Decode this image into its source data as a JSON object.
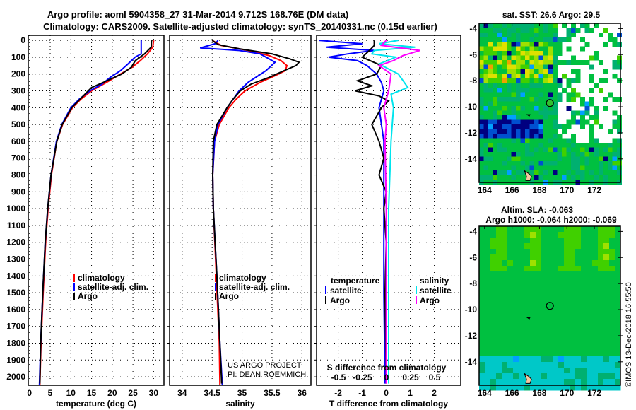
{
  "title_line1": "Argo profile: aoml 5904358_27 31-Mar-2014 9.712S 168.76E (DM data)",
  "title_line2": "Climatology: CARS2009. Satellite-adjusted climatology: synTS_20140331.nc (0.15d earlier)",
  "colors": {
    "climatology": "#ff0000",
    "satellite": "#0000ff",
    "argo": "#000000",
    "sal_satellite": "#00e5ee",
    "sal_argo": "#ff00ff"
  },
  "depth_ticks": [
    0,
    100,
    200,
    300,
    400,
    500,
    600,
    700,
    800,
    900,
    1000,
    1100,
    1200,
    1300,
    1400,
    1500,
    1600,
    1700,
    1800,
    1900,
    2000
  ],
  "chart_data": [
    {
      "type": "line",
      "xlabel": "temperature (deg C)",
      "ylabel": "depth",
      "xlim": [
        -0.3,
        32.5
      ],
      "ylim": [
        2050,
        -30
      ],
      "xticks": [
        0,
        5,
        10,
        15,
        20,
        25,
        30
      ],
      "legend": [
        "climatology",
        "satellite-adj. clim.",
        "Argo"
      ],
      "series": [
        {
          "name": "climatology",
          "points": [
            [
              0,
              30
            ],
            [
              40,
              29.8
            ],
            [
              80,
              28.5
            ],
            [
              120,
              26.8
            ],
            [
              160,
              24.8
            ],
            [
              200,
              22
            ],
            [
              250,
              18.6
            ],
            [
              300,
              15
            ],
            [
              350,
              12.4
            ],
            [
              400,
              10.4
            ],
            [
              500,
              8
            ],
            [
              600,
              6.6
            ],
            [
              800,
              5.3
            ],
            [
              1000,
              4.5
            ],
            [
              1200,
              3.9
            ],
            [
              1500,
              3.3
            ],
            [
              1800,
              2.8
            ],
            [
              2050,
              2.5
            ]
          ]
        },
        {
          "name": "satellite-adj. clim.",
          "points": [
            [
              0,
              27
            ],
            [
              80,
              27
            ],
            [
              100,
              25.5
            ],
            [
              140,
              23.8
            ],
            [
              180,
              22
            ],
            [
              220,
              19.5
            ],
            [
              260,
              17.5
            ],
            [
              300,
              14.6
            ],
            [
              350,
              12
            ],
            [
              400,
              10
            ],
            [
              500,
              7.8
            ],
            [
              600,
              6.5
            ],
            [
              800,
              5.2
            ],
            [
              1000,
              4.4
            ],
            [
              1200,
              3.8
            ],
            [
              1500,
              3.2
            ],
            [
              1800,
              2.7
            ],
            [
              2050,
              2.4
            ]
          ]
        },
        {
          "name": "Argo",
          "points": [
            [
              0,
              29.5
            ],
            [
              40,
              29.4
            ],
            [
              80,
              27.8
            ],
            [
              120,
              25.6
            ],
            [
              160,
              24.6
            ],
            [
              200,
              22.3
            ],
            [
              250,
              17.8
            ],
            [
              280,
              15
            ],
            [
              300,
              14.2
            ],
            [
              350,
              12.2
            ],
            [
              400,
              10.2
            ],
            [
              500,
              7.9
            ],
            [
              600,
              6.6
            ],
            [
              800,
              5.2
            ],
            [
              1000,
              4.4
            ],
            [
              1200,
              3.8
            ],
            [
              1500,
              3.2
            ],
            [
              1800,
              2.7
            ],
            [
              2040,
              2.5
            ]
          ]
        }
      ]
    },
    {
      "type": "line",
      "xlabel": "salinity",
      "ylabel": "depth",
      "xlim": [
        33.79,
        36.15
      ],
      "ylim": [
        2050,
        -30
      ],
      "xticks": [
        34,
        34.5,
        35,
        35.5,
        36
      ],
      "legend": [
        "climatology",
        "satellite-adj. clim.",
        "Argo"
      ],
      "annotation": [
        "US ARGO PROJECT",
        "PI: DEAN ROEMMICH"
      ],
      "series": [
        {
          "name": "climatology",
          "points": [
            [
              0,
              34.5
            ],
            [
              30,
              34.65
            ],
            [
              60,
              35.1
            ],
            [
              90,
              35.45
            ],
            [
              120,
              35.65
            ],
            [
              150,
              35.75
            ],
            [
              180,
              35.72
            ],
            [
              210,
              35.55
            ],
            [
              250,
              35.3
            ],
            [
              300,
              35.05
            ],
            [
              350,
              34.9
            ],
            [
              400,
              34.78
            ],
            [
              500,
              34.62
            ],
            [
              600,
              34.54
            ],
            [
              800,
              34.51
            ],
            [
              1000,
              34.52
            ],
            [
              1400,
              34.57
            ],
            [
              1800,
              34.62
            ],
            [
              2050,
              34.63
            ]
          ]
        },
        {
          "name": "satellite-adj. clim.",
          "points": [
            [
              0,
              34.6
            ],
            [
              20,
              34.55
            ],
            [
              45,
              34.3
            ],
            [
              60,
              34.95
            ],
            [
              80,
              35.3
            ],
            [
              110,
              35.45
            ],
            [
              130,
              35.55
            ],
            [
              180,
              35.4
            ],
            [
              250,
              35.1
            ],
            [
              300,
              34.95
            ],
            [
              400,
              34.75
            ],
            [
              500,
              34.6
            ],
            [
              600,
              34.54
            ],
            [
              800,
              34.51
            ],
            [
              1000,
              34.52
            ],
            [
              1400,
              34.58
            ],
            [
              1800,
              34.63
            ],
            [
              2050,
              34.67
            ]
          ]
        },
        {
          "name": "Argo",
          "points": [
            [
              0,
              34.5
            ],
            [
              25,
              34.6
            ],
            [
              50,
              34.95
            ],
            [
              80,
              35.5
            ],
            [
              110,
              35.8
            ],
            [
              130,
              35.95
            ],
            [
              150,
              35.9
            ],
            [
              180,
              35.7
            ],
            [
              220,
              35.45
            ],
            [
              260,
              35.15
            ],
            [
              300,
              34.97
            ],
            [
              350,
              34.85
            ],
            [
              400,
              34.75
            ],
            [
              500,
              34.58
            ],
            [
              600,
              34.52
            ],
            [
              800,
              34.51
            ],
            [
              1000,
              34.52
            ],
            [
              1400,
              34.58
            ],
            [
              1800,
              34.63
            ],
            [
              2040,
              34.66
            ]
          ]
        }
      ]
    },
    {
      "type": "line",
      "xlabel": "T difference from climatology",
      "xlabel_top": "S difference from climatology",
      "ylabel": "depth",
      "xlim": [
        -2.9,
        3.1
      ],
      "ylim": [
        2050,
        -30
      ],
      "xticks": [
        -2,
        -1,
        0,
        1,
        2
      ],
      "sticks": [
        "-0.5",
        "-0.25",
        "0",
        "0.25",
        "0.5"
      ],
      "legend_temperature": {
        "title": "temperature",
        "items": [
          "satellite",
          "Argo"
        ]
      },
      "legend_salinity": {
        "title": "salinity",
        "items": [
          "satellite",
          "Argo"
        ]
      },
      "series": [
        {
          "name": "temperature satellite",
          "points": [
            [
              0,
              -2.8
            ],
            [
              20,
              -1
            ],
            [
              40,
              -2.5
            ],
            [
              60,
              -0.5
            ],
            [
              80,
              -1.6
            ],
            [
              100,
              -2.4
            ],
            [
              120,
              -1.2
            ],
            [
              150,
              -0.8
            ],
            [
              200,
              -0.4
            ],
            [
              250,
              -0.2
            ],
            [
              300,
              -0.1
            ],
            [
              400,
              -0.3
            ],
            [
              600,
              -0.1
            ],
            [
              800,
              -0.1
            ],
            [
              1000,
              -0.1
            ],
            [
              1500,
              -0.1
            ],
            [
              2040,
              -0.05
            ]
          ]
        },
        {
          "name": "temperature Argo",
          "points": [
            [
              0,
              -0.5
            ],
            [
              30,
              -0.5
            ],
            [
              60,
              -0.7
            ],
            [
              100,
              -1
            ],
            [
              150,
              -0.2
            ],
            [
              200,
              -0.4
            ],
            [
              240,
              -1.2
            ],
            [
              270,
              -0.6
            ],
            [
              300,
              -1.3
            ],
            [
              330,
              -0.3
            ],
            [
              360,
              0.1
            ],
            [
              400,
              -0.2
            ],
            [
              450,
              -0.4
            ],
            [
              500,
              -0.6
            ],
            [
              600,
              -0.3
            ],
            [
              700,
              -0.1
            ],
            [
              800,
              -0.3
            ],
            [
              900,
              0
            ],
            [
              1000,
              -0.1
            ],
            [
              1200,
              0
            ],
            [
              1500,
              -0.05
            ],
            [
              2040,
              0
            ]
          ]
        },
        {
          "name": "salinity satellite",
          "points": [
            [
              0,
              0.5
            ],
            [
              20,
              -0.3
            ],
            [
              40,
              1.2
            ],
            [
              60,
              -0.5
            ],
            [
              80,
              -0.6
            ],
            [
              100,
              0.4
            ],
            [
              140,
              -0.3
            ],
            [
              200,
              0.5
            ],
            [
              280,
              0.9
            ],
            [
              320,
              0.2
            ],
            [
              400,
              0.3
            ],
            [
              600,
              0.2
            ],
            [
              1000,
              0.1
            ],
            [
              1500,
              0.1
            ],
            [
              2040,
              0.1
            ]
          ]
        },
        {
          "name": "salinity Argo",
          "points": [
            [
              0,
              0
            ],
            [
              30,
              -0.2
            ],
            [
              60,
              1.4
            ],
            [
              90,
              0.7
            ],
            [
              120,
              0.3
            ],
            [
              150,
              -0.3
            ],
            [
              200,
              0.2
            ],
            [
              300,
              0.1
            ],
            [
              400,
              -0.1
            ],
            [
              500,
              0
            ],
            [
              600,
              -0.05
            ],
            [
              1000,
              0
            ],
            [
              1500,
              0
            ],
            [
              2040,
              0
            ]
          ]
        }
      ]
    },
    {
      "type": "heatmap",
      "title": "sat. SST: 26.6 Argo: 29.5",
      "xticks": [
        164,
        166,
        168,
        170,
        172
      ],
      "yticks": [
        -4,
        -6,
        -8,
        -10,
        -12,
        -14
      ],
      "xlim": [
        163.6,
        173.9
      ],
      "ylim": [
        -15.8,
        -3.6
      ],
      "argo_position": [
        168.76,
        -9.712
      ]
    },
    {
      "type": "heatmap",
      "title_line1": "Altim. SLA: -0.063",
      "title_line2": "Argo h1000: -0.064 h2000: -0.069",
      "xticks": [
        164,
        166,
        168,
        170,
        172
      ],
      "yticks": [
        -4,
        -6,
        -8,
        -10,
        -12,
        -14
      ],
      "xlim": [
        163.6,
        173.9
      ],
      "ylim": [
        -15.8,
        -3.6
      ],
      "argo_position": [
        168.76,
        -9.712
      ]
    }
  ],
  "stamp": "©IMOS 13-Dec-2018 16:55:50"
}
